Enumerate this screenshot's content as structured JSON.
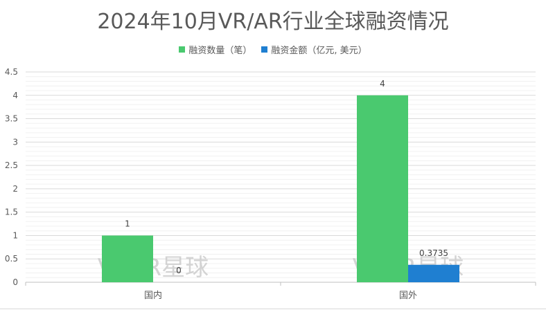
{
  "chart_data": {
    "type": "bar",
    "title": "2024年10月VR/AR行业全球融资情况",
    "categories": [
      "国内",
      "国外"
    ],
    "series": [
      {
        "name": "融资数量（笔）",
        "values": [
          1,
          4
        ],
        "labels": [
          "1",
          "4"
        ],
        "color": "#4ac96f"
      },
      {
        "name": "融资金额（亿元, 美元）",
        "values": [
          0,
          0.3735
        ],
        "labels": [
          "0",
          "0.3735"
        ],
        "color": "#1f7fd1"
      }
    ],
    "ylim": [
      0,
      4.5
    ],
    "yticks": [
      "0",
      "0.5",
      "1",
      "1.5",
      "2",
      "2.5",
      "3",
      "3.5",
      "4",
      "4.5"
    ],
    "xlabel": "",
    "ylabel": "",
    "grid": true,
    "legend_position": "top",
    "watermark": "VRAR星球"
  }
}
